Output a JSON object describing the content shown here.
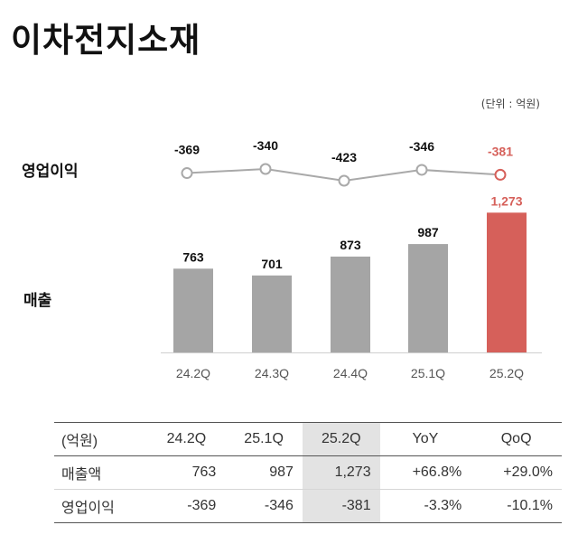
{
  "title": "이차전지소재",
  "unit": "(단위 : 억원)",
  "chart_data": {
    "type": "bar",
    "categories": [
      "24.2Q",
      "24.3Q",
      "24.4Q",
      "25.1Q",
      "25.2Q"
    ],
    "series": [
      {
        "name": "매출",
        "type": "bar",
        "values": [
          763,
          701,
          873,
          987,
          1273
        ],
        "labels": [
          "763",
          "701",
          "873",
          "987",
          "1,273"
        ]
      },
      {
        "name": "영업이익",
        "type": "line",
        "values": [
          -369,
          -340,
          -423,
          -346,
          -381
        ],
        "labels": [
          "-369",
          "-340",
          "-423",
          "-346",
          "-381"
        ]
      }
    ],
    "highlight_index": 4,
    "colors": {
      "bar": "#a5a5a5",
      "bar_highlight": "#d6605a",
      "line": "#a9a9a9",
      "label": "#111111",
      "label_highlight": "#d6605a"
    }
  },
  "table": {
    "headers": [
      "(억원)",
      "24.2Q",
      "25.1Q",
      "25.2Q",
      "YoY",
      "QoQ"
    ],
    "rows": [
      [
        "매출액",
        "763",
        "987",
        "1,273",
        "+66.8%",
        "+29.0%"
      ],
      [
        "영업이익",
        "-369",
        "-346",
        "-381",
        "-3.3%",
        "-10.1%"
      ]
    ]
  }
}
